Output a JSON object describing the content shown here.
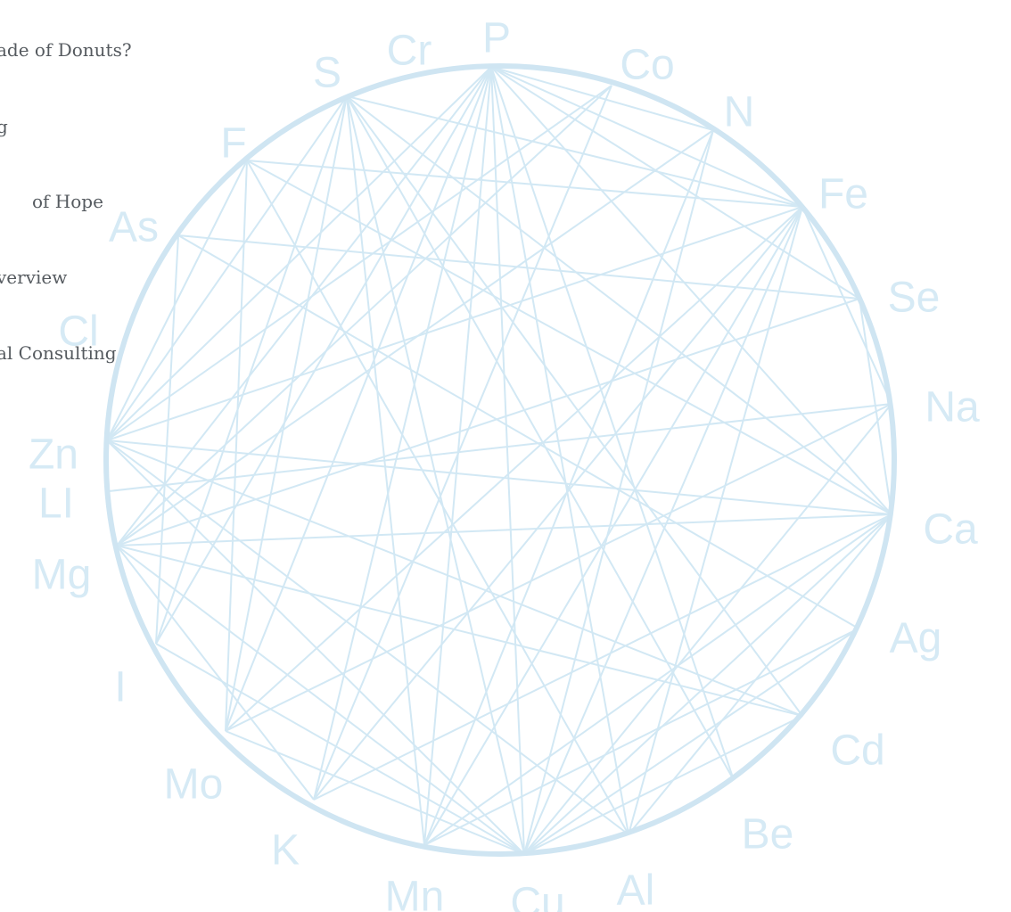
{
  "menu": {
    "items": [
      "ade of Donuts?",
      "g",
      "of Hope",
      "verview",
      "al Consulting"
    ]
  },
  "colors": {
    "circle": "#cfe5f2",
    "lines": "#d2e8f4",
    "labels": "#d6eaf5",
    "menu_text": "#555a5f"
  },
  "elements": [
    "P",
    "Co",
    "N",
    "Fe",
    "Se",
    "Na",
    "Ca",
    "Ag",
    "Cd",
    "Be",
    "Al",
    "Cu",
    "Mn",
    "K",
    "Mo",
    "I",
    "Mg",
    "LI",
    "Zn",
    "Cl",
    "As",
    "F",
    "S",
    "Cr"
  ],
  "connections": [
    [
      "P",
      "Fe"
    ],
    [
      "P",
      "Ca"
    ],
    [
      "P",
      "Al"
    ],
    [
      "P",
      "Cu"
    ],
    [
      "P",
      "Mn"
    ],
    [
      "P",
      "K"
    ],
    [
      "P",
      "Mo"
    ],
    [
      "P",
      "I"
    ],
    [
      "P",
      "Zn"
    ],
    [
      "P",
      "Mg"
    ],
    [
      "P",
      "N"
    ],
    [
      "P",
      "Se"
    ],
    [
      "P",
      "Be"
    ],
    [
      "P",
      "Cr"
    ],
    [
      "S",
      "Fe"
    ],
    [
      "S",
      "Ca"
    ],
    [
      "S",
      "Be"
    ],
    [
      "S",
      "Mn"
    ],
    [
      "S",
      "Cu"
    ],
    [
      "S",
      "Mo"
    ],
    [
      "S",
      "I"
    ],
    [
      "S",
      "Zn"
    ],
    [
      "S",
      "Cd"
    ],
    [
      "F",
      "Ca"
    ],
    [
      "F",
      "Al"
    ],
    [
      "F",
      "Zn"
    ],
    [
      "F",
      "Mo"
    ],
    [
      "F",
      "Fe"
    ],
    [
      "As",
      "Se"
    ],
    [
      "As",
      "I"
    ],
    [
      "As",
      "Ag"
    ],
    [
      "Co",
      "Zn"
    ],
    [
      "Co",
      "Mg"
    ],
    [
      "Co",
      "K"
    ],
    [
      "N",
      "Cu"
    ],
    [
      "N",
      "Mn"
    ],
    [
      "N",
      "Mg"
    ],
    [
      "Fe",
      "Cu"
    ],
    [
      "Fe",
      "Al"
    ],
    [
      "Fe",
      "Mn"
    ],
    [
      "Fe",
      "K"
    ],
    [
      "Fe",
      "Zn"
    ],
    [
      "Fe",
      "Mo"
    ],
    [
      "Fe",
      "Na"
    ],
    [
      "Se",
      "Mg"
    ],
    [
      "Se",
      "Ca"
    ],
    [
      "Na",
      "LI"
    ],
    [
      "Na",
      "Mo"
    ],
    [
      "Na",
      "Cu"
    ],
    [
      "Ca",
      "Zn"
    ],
    [
      "Ca",
      "Mg"
    ],
    [
      "Ca",
      "K"
    ],
    [
      "Ca",
      "Mn"
    ],
    [
      "Ca",
      "Cu"
    ],
    [
      "Ca",
      "Al"
    ],
    [
      "Ag",
      "Cu"
    ],
    [
      "Ag",
      "Mn"
    ],
    [
      "Cd",
      "Zn"
    ],
    [
      "Cd",
      "Mg"
    ],
    [
      "Cd",
      "Cu"
    ],
    [
      "Mg",
      "Cu"
    ],
    [
      "Mg",
      "K"
    ],
    [
      "Zn",
      "Cu"
    ],
    [
      "Zn",
      "Al"
    ],
    [
      "I",
      "Cu"
    ],
    [
      "Mo",
      "Cu"
    ]
  ]
}
